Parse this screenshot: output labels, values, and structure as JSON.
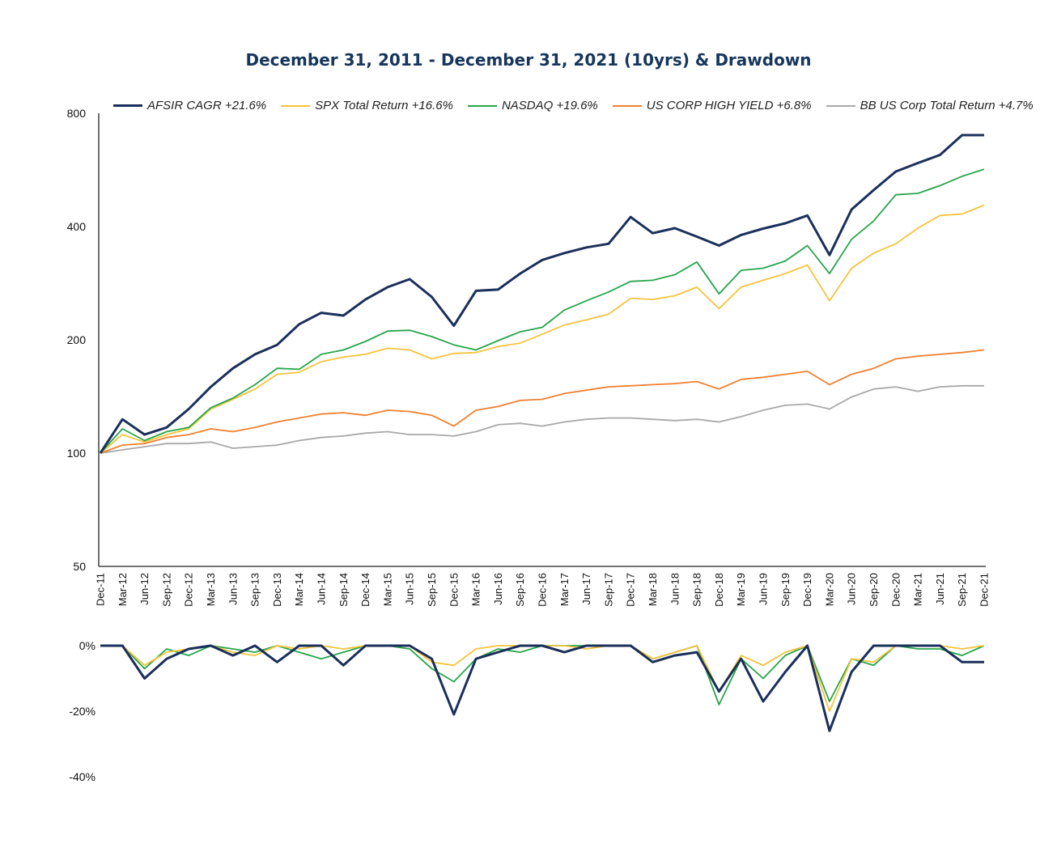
{
  "chart_data": [
    {
      "type": "line",
      "title": "December 31, 2011 - December 31, 2021 (10yrs) & Drawdown",
      "yscale": "log2",
      "ylim": [
        50,
        800
      ],
      "yticks": [
        50,
        100,
        200,
        400,
        800
      ],
      "categories": [
        "Dec-11",
        "Mar-12",
        "Jun-12",
        "Sep-12",
        "Dec-12",
        "Mar-13",
        "Jun-13",
        "Sep-13",
        "Dec-13",
        "Mar-14",
        "Jun-14",
        "Sep-14",
        "Dec-14",
        "Mar-15",
        "Jun-15",
        "Sep-15",
        "Dec-15",
        "Mar-16",
        "Jun-16",
        "Sep-16",
        "Dec-16",
        "Mar-17",
        "Jun-17",
        "Sep-17",
        "Dec-17",
        "Mar-18",
        "Jun-18",
        "Sep-18",
        "Dec-18",
        "Mar-19",
        "Jun-19",
        "Sep-19",
        "Dec-19",
        "Mar-20",
        "Jun-20",
        "Sep-20",
        "Dec-20",
        "Mar-21",
        "Jun-21",
        "Sep-21",
        "Dec-21"
      ],
      "series": [
        {
          "name": "AFSIR  CAGR +21.6%",
          "color": "#1a2f5a",
          "width": 3,
          "values": [
            100,
            123,
            112,
            117,
            131,
            150,
            168,
            183,
            194,
            220,
            236,
            232,
            256,
            276,
            290,
            260,
            218,
            270,
            272,
            300,
            326,
            340,
            352,
            360,
            424,
            384,
            396,
            376,
            356,
            380,
            395,
            408,
            428,
            336,
            444,
            500,
            560,
            590,
            620,
            700,
            700
          ]
        },
        {
          "name": "SPX Total Return +16.6%",
          "color": "#f5c33b",
          "width": 1.8,
          "values": [
            100,
            112,
            107,
            112,
            116,
            131,
            139,
            148,
            162,
            164,
            175,
            180,
            183,
            190,
            188,
            178,
            184,
            185,
            192,
            196,
            207,
            219,
            226,
            234,
            258,
            256,
            262,
            276,
            242,
            276,
            288,
            300,
            316,
            254,
            310,
            340,
            360,
            396,
            428,
            432,
            456
          ]
        },
        {
          "name": "NASDAQ +19.6%",
          "color": "#27a54a",
          "width": 1.8,
          "values": [
            100,
            116,
            108,
            114,
            117,
            132,
            140,
            152,
            168,
            167,
            183,
            188,
            198,
            211,
            212,
            204,
            194,
            188,
            199,
            210,
            216,
            240,
            254,
            268,
            286,
            288,
            298,
            322,
            265,
            306,
            310,
            324,
            356,
            300,
            370,
            414,
            486,
            490,
            514,
            544,
            568
          ]
        },
        {
          "name": "US CORP HIGH YIELD +6.8%",
          "color": "#f08030",
          "width": 1.8,
          "values": [
            100,
            105,
            106,
            110,
            112,
            116,
            114,
            117,
            121,
            124,
            127,
            128,
            126,
            130,
            129,
            126,
            118,
            130,
            133,
            138,
            139,
            144,
            147,
            150,
            151,
            152,
            153,
            155,
            148,
            157,
            159,
            162,
            165,
            152,
            162,
            168,
            178,
            181,
            183,
            185,
            188
          ]
        },
        {
          "name": "BB US Corp Total Return +4.7%",
          "color": "#a8a8a8",
          "width": 1.8,
          "values": [
            100,
            102,
            104,
            106,
            106,
            107,
            103,
            104,
            105,
            108,
            110,
            111,
            113,
            114,
            112,
            112,
            111,
            114,
            119,
            120,
            118,
            121,
            123,
            124,
            124,
            123,
            122,
            123,
            121,
            125,
            130,
            134,
            135,
            131,
            141,
            148,
            150,
            146,
            150,
            151,
            151
          ]
        }
      ]
    },
    {
      "type": "line",
      "title": "Drawdown",
      "ylim": [
        -40,
        0
      ],
      "yticks": [
        0,
        -20,
        -40
      ],
      "ytick_labels": [
        "0%",
        "-20%",
        "-40%"
      ],
      "series": [
        {
          "name": "AFSIR",
          "color": "#1a2f5a",
          "width": 3,
          "values": [
            0,
            0,
            -10,
            -4,
            -1,
            0,
            -3,
            0,
            -5,
            0,
            0,
            -6,
            0,
            0,
            0,
            -4,
            -21,
            -4,
            -2,
            0,
            0,
            -2,
            0,
            0,
            0,
            -5,
            -3,
            -2,
            -14,
            -4,
            -17,
            -8,
            0,
            -26,
            -8,
            0,
            0,
            0,
            0,
            -5,
            -5
          ]
        },
        {
          "name": "SPX",
          "color": "#f5c33b",
          "width": 1.8,
          "values": [
            0,
            0,
            -6,
            -2,
            -1,
            0,
            -2,
            -3,
            0,
            -1,
            0,
            -1,
            0,
            0,
            0,
            -5,
            -6,
            -1,
            0,
            0,
            0,
            0,
            -1,
            0,
            0,
            -4,
            -2,
            0,
            -14,
            -3,
            -6,
            -2,
            0,
            -20,
            -4,
            -5,
            0,
            0,
            0,
            -1,
            0
          ]
        },
        {
          "name": "NASDAQ",
          "color": "#27a54a",
          "width": 1.8,
          "values": [
            0,
            0,
            -7,
            -1,
            -3,
            0,
            -1,
            -2,
            0,
            -2,
            -4,
            -2,
            0,
            0,
            -1,
            -7,
            -11,
            -4,
            -1,
            -2,
            0,
            0,
            0,
            0,
            0,
            -4,
            -2,
            0,
            -18,
            -4,
            -10,
            -3,
            0,
            -17,
            -4,
            -6,
            0,
            -1,
            -1,
            -3,
            0
          ]
        }
      ]
    }
  ]
}
